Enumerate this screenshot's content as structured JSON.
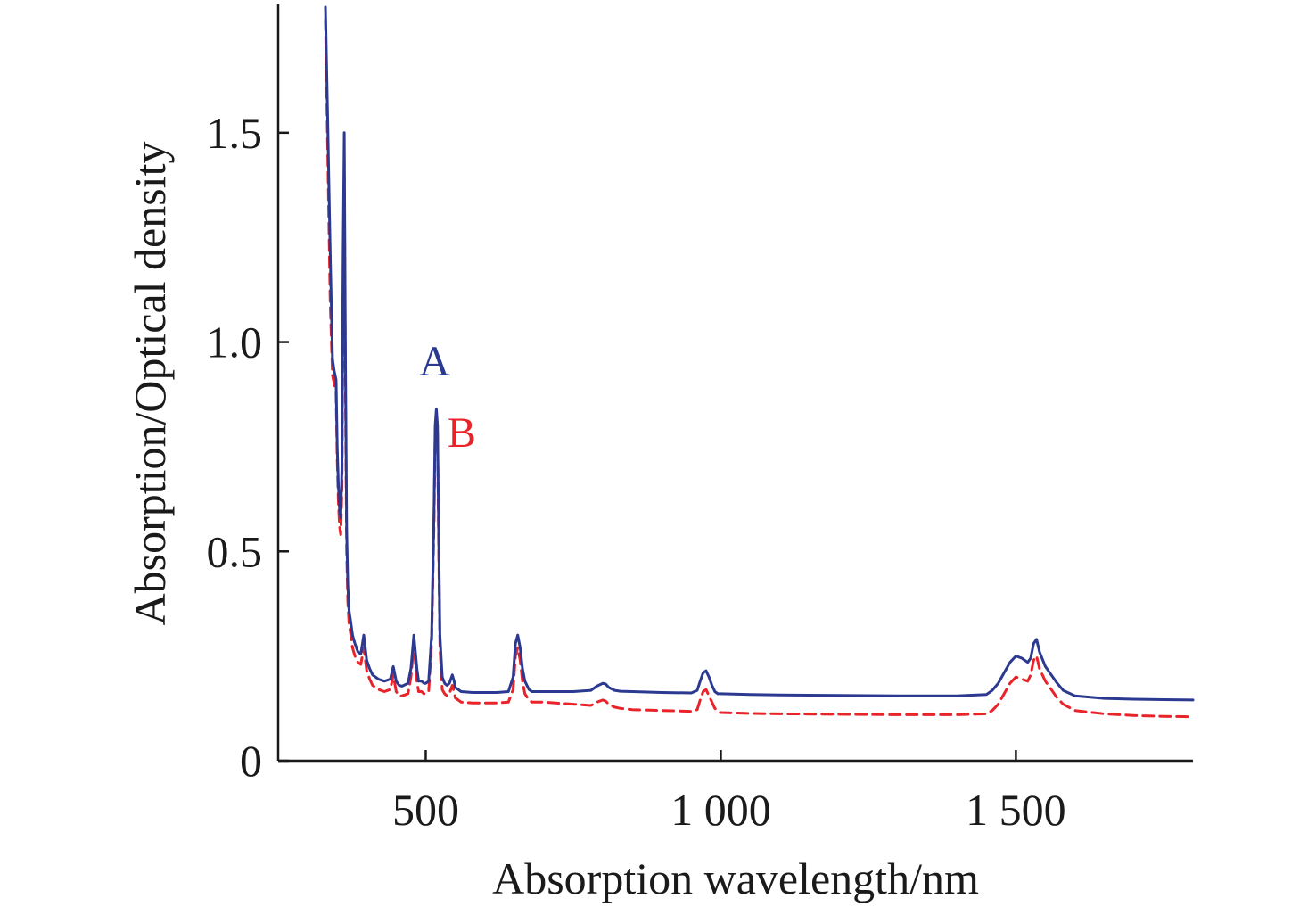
{
  "chart_data": {
    "type": "line",
    "title": "",
    "xlabel": "Absorption wavelength/nm",
    "ylabel": "Absorption/Optical density",
    "xlim": [
      250,
      1800
    ],
    "ylim": [
      0,
      1.8
    ],
    "x_ticks": [
      {
        "value": 500,
        "label": "500"
      },
      {
        "value": 1000,
        "label": "1 000"
      },
      {
        "value": 1500,
        "label": "1 500"
      }
    ],
    "y_ticks": [
      {
        "value": 0,
        "label": "0"
      },
      {
        "value": 0.5,
        "label": "0.5"
      },
      {
        "value": 1.0,
        "label": "1.0"
      },
      {
        "value": 1.5,
        "label": "1.5"
      }
    ],
    "grid": false,
    "legend": "none",
    "series": [
      {
        "name": "A",
        "color": "#2b3990",
        "style": "solid",
        "label_at": {
          "x": 515,
          "y": 0.92
        },
        "x": [
          330,
          334,
          338,
          342,
          345,
          348,
          350,
          352,
          354,
          356,
          358,
          360,
          362,
          364,
          366,
          368,
          370,
          372,
          374,
          376,
          378,
          380,
          385,
          390,
          395,
          400,
          405,
          410,
          420,
          430,
          440,
          445,
          450,
          455,
          460,
          470,
          475,
          480,
          485,
          488,
          490,
          493,
          497,
          500,
          505,
          510,
          514,
          516,
          518,
          520,
          522,
          524,
          528,
          532,
          536,
          540,
          545,
          548,
          550,
          555,
          560,
          580,
          600,
          620,
          640,
          648,
          652,
          656,
          660,
          664,
          668,
          675,
          680,
          700,
          750,
          780,
          790,
          800,
          805,
          810,
          820,
          830,
          850,
          900,
          950,
          960,
          965,
          970,
          975,
          980,
          985,
          990,
          995,
          1000,
          1050,
          1100,
          1200,
          1300,
          1400,
          1450,
          1460,
          1470,
          1480,
          1490,
          1500,
          1510,
          1520,
          1525,
          1530,
          1535,
          1540,
          1550,
          1560,
          1570,
          1580,
          1600,
          1650,
          1700,
          1750,
          1800
        ],
        "y": [
          1.8,
          1.52,
          1.22,
          0.96,
          0.93,
          0.91,
          0.75,
          0.66,
          0.6,
          0.58,
          0.7,
          1.2,
          1.5,
          0.95,
          0.55,
          0.42,
          0.36,
          0.34,
          0.32,
          0.3,
          0.29,
          0.28,
          0.26,
          0.255,
          0.3,
          0.24,
          0.22,
          0.205,
          0.195,
          0.19,
          0.195,
          0.225,
          0.19,
          0.18,
          0.178,
          0.185,
          0.22,
          0.3,
          0.22,
          0.19,
          0.19,
          0.19,
          0.185,
          0.185,
          0.19,
          0.3,
          0.6,
          0.8,
          0.84,
          0.8,
          0.55,
          0.3,
          0.2,
          0.185,
          0.18,
          0.185,
          0.205,
          0.19,
          0.175,
          0.17,
          0.165,
          0.163,
          0.163,
          0.163,
          0.165,
          0.2,
          0.28,
          0.3,
          0.27,
          0.22,
          0.19,
          0.17,
          0.165,
          0.165,
          0.165,
          0.168,
          0.178,
          0.185,
          0.183,
          0.175,
          0.168,
          0.166,
          0.165,
          0.163,
          0.162,
          0.168,
          0.19,
          0.21,
          0.215,
          0.2,
          0.18,
          0.165,
          0.16,
          0.16,
          0.158,
          0.157,
          0.156,
          0.155,
          0.155,
          0.158,
          0.168,
          0.185,
          0.21,
          0.235,
          0.25,
          0.245,
          0.235,
          0.245,
          0.28,
          0.29,
          0.26,
          0.225,
          0.205,
          0.185,
          0.168,
          0.155,
          0.149,
          0.147,
          0.146,
          0.145
        ]
      },
      {
        "name": "B",
        "color": "#e8242a",
        "style": "dashed",
        "label_at": {
          "x": 561,
          "y": 0.75
        },
        "x": [
          330,
          334,
          338,
          342,
          345,
          348,
          350,
          352,
          354,
          356,
          358,
          360,
          362,
          364,
          366,
          368,
          370,
          372,
          374,
          376,
          378,
          380,
          385,
          390,
          395,
          400,
          405,
          410,
          420,
          430,
          440,
          445,
          450,
          455,
          460,
          470,
          475,
          480,
          485,
          488,
          490,
          493,
          497,
          500,
          505,
          510,
          514,
          516,
          518,
          520,
          522,
          524,
          528,
          532,
          536,
          540,
          545,
          548,
          550,
          555,
          560,
          580,
          600,
          620,
          640,
          648,
          652,
          656,
          660,
          664,
          668,
          675,
          680,
          700,
          750,
          780,
          790,
          800,
          805,
          810,
          820,
          830,
          850,
          900,
          950,
          960,
          965,
          970,
          975,
          980,
          985,
          990,
          995,
          1000,
          1050,
          1100,
          1200,
          1300,
          1400,
          1450,
          1460,
          1470,
          1480,
          1490,
          1500,
          1510,
          1520,
          1525,
          1530,
          1535,
          1540,
          1550,
          1560,
          1570,
          1580,
          1600,
          1650,
          1700,
          1750,
          1800
        ],
        "y": [
          1.77,
          1.45,
          1.1,
          0.92,
          0.9,
          0.88,
          0.72,
          0.62,
          0.56,
          0.54,
          0.65,
          1.1,
          1.43,
          0.88,
          0.5,
          0.38,
          0.33,
          0.31,
          0.29,
          0.27,
          0.26,
          0.25,
          0.235,
          0.23,
          0.27,
          0.215,
          0.195,
          0.18,
          0.17,
          0.165,
          0.17,
          0.205,
          0.165,
          0.155,
          0.155,
          0.16,
          0.2,
          0.28,
          0.19,
          0.165,
          0.165,
          0.165,
          0.16,
          0.16,
          0.165,
          0.28,
          0.57,
          0.78,
          0.82,
          0.78,
          0.52,
          0.27,
          0.17,
          0.16,
          0.155,
          0.16,
          0.18,
          0.165,
          0.15,
          0.145,
          0.14,
          0.138,
          0.138,
          0.138,
          0.14,
          0.17,
          0.25,
          0.27,
          0.24,
          0.19,
          0.16,
          0.145,
          0.14,
          0.14,
          0.135,
          0.132,
          0.14,
          0.145,
          0.142,
          0.135,
          0.128,
          0.125,
          0.122,
          0.12,
          0.118,
          0.122,
          0.145,
          0.165,
          0.17,
          0.155,
          0.14,
          0.125,
          0.118,
          0.115,
          0.113,
          0.112,
          0.111,
          0.11,
          0.11,
          0.112,
          0.12,
          0.135,
          0.16,
          0.185,
          0.2,
          0.195,
          0.19,
          0.205,
          0.24,
          0.25,
          0.22,
          0.19,
          0.17,
          0.15,
          0.135,
          0.12,
          0.112,
          0.108,
          0.106,
          0.105
        ]
      }
    ]
  }
}
